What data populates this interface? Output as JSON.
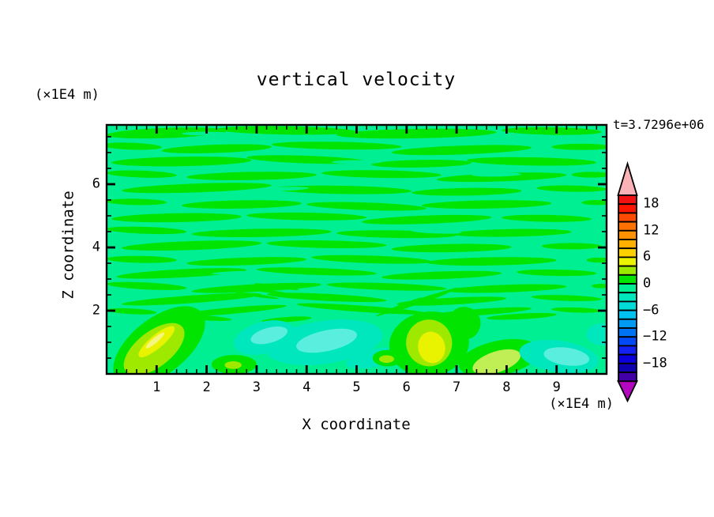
{
  "title": "vertical velocity",
  "time_label": "t=3.7296e+06",
  "x_axis": {
    "title": "X coordinate",
    "unit": "(×1E4 m)",
    "tick_labels": [
      "1",
      "2",
      "3",
      "4",
      "5",
      "6",
      "7",
      "8",
      "9"
    ]
  },
  "y_axis": {
    "title": "Z coordinate",
    "unit": "(×1E4 m)",
    "tick_labels": [
      "6",
      "4",
      "2"
    ]
  },
  "colorbar": {
    "labels": [
      "18",
      "12",
      "6",
      "0",
      "−6",
      "−12",
      "−18"
    ],
    "tick_values": [
      18,
      12,
      6,
      0,
      -6,
      -12,
      -18
    ],
    "level_min": -22,
    "level_max": 20,
    "interval": 2,
    "cell_colors": [
      "#f01212",
      "#fb1400",
      "#ff4a00",
      "#ff7100",
      "#ff9100",
      "#ffb000",
      "#ffd000",
      "#edf200",
      "#9ce900",
      "#00e400",
      "#00ef93",
      "#00e7bd",
      "#00dcd8",
      "#00c2ee",
      "#009af2",
      "#0072f4",
      "#014af6",
      "#1322f2",
      "#0b00dc",
      "#0e00b0",
      "#4100a8"
    ],
    "arrow_top_color": "#f9b3b7",
    "arrow_bottom_color": "#b408c0"
  },
  "chart_data": {
    "type": "filled_contour",
    "title": "vertical velocity",
    "time": "t=3.7296e+06",
    "xlabel": "X coordinate",
    "ylabel": "Z coordinate",
    "x_unit": "(×1E4 m)",
    "z_unit": "(×1E4 m)",
    "x_range": [
      0,
      10
    ],
    "z_range": [
      0,
      7.875
    ],
    "x_tick_values": [
      1,
      2,
      3,
      4,
      5,
      6,
      7,
      8,
      9
    ],
    "z_tick_values": [
      2,
      4,
      6
    ],
    "contour_interval": 2,
    "grid": false,
    "legend_position": "right-colorbar",
    "field_description": "Weak alternating up/down drafts (|w|<2) form horizontal streaks above z=2; stronger convective cells near the surface: updraft cores (w up to ~6) near x=1 and x=6.5, downdraft cores (w to ~-6) near x=3-5 and x=9.",
    "palette": {
      "SG": "#00ef93",
      "G": "#00e400",
      "T": "#00e7bd",
      "C": "#59eedd",
      "GY": "#9fe900",
      "Y": "#e9f300",
      "PY": "#f5f67e",
      "PG": "#c0ee55"
    },
    "level_of_color": {
      "G": "0..2",
      "SG": "-2..0",
      "GY": "2..4",
      "Y": "4..6",
      "T": "-2..-4",
      "C": "-4..-6",
      "PG": "2..4",
      "PY": "4..6"
    },
    "shapes": [
      [
        1.2,
        7.62,
        1.2,
        0.16,
        -2,
        "G"
      ],
      [
        3.6,
        7.7,
        1.4,
        0.13,
        1,
        "G"
      ],
      [
        6.2,
        7.6,
        1.6,
        0.15,
        -1,
        "G"
      ],
      [
        8.9,
        7.68,
        1.0,
        0.12,
        1,
        "G"
      ],
      [
        0.5,
        7.2,
        0.6,
        0.11,
        2,
        "G"
      ],
      [
        2.2,
        7.12,
        1.1,
        0.13,
        -2,
        "G"
      ],
      [
        4.6,
        7.22,
        1.3,
        0.12,
        1,
        "G"
      ],
      [
        7.1,
        7.08,
        1.4,
        0.14,
        -2,
        "G"
      ],
      [
        9.5,
        7.18,
        0.6,
        0.1,
        0,
        "G"
      ],
      [
        1.5,
        6.72,
        1.4,
        0.15,
        -1,
        "G"
      ],
      [
        4.0,
        6.78,
        1.2,
        0.12,
        2,
        "G"
      ],
      [
        6.3,
        6.65,
        1.0,
        0.12,
        -1,
        "G"
      ],
      [
        8.5,
        6.72,
        1.3,
        0.13,
        1,
        "G"
      ],
      [
        0.7,
        6.32,
        0.7,
        0.11,
        2,
        "G"
      ],
      [
        2.9,
        6.26,
        1.3,
        0.13,
        -1,
        "G"
      ],
      [
        5.5,
        6.32,
        1.2,
        0.12,
        1,
        "G"
      ],
      [
        7.9,
        6.22,
        1.3,
        0.13,
        -2,
        "G"
      ],
      [
        9.7,
        6.3,
        0.4,
        0.09,
        0,
        "G"
      ],
      [
        1.8,
        5.88,
        1.5,
        0.14,
        -2,
        "G"
      ],
      [
        4.7,
        5.82,
        1.4,
        0.13,
        1,
        "G"
      ],
      [
        7.2,
        5.76,
        1.1,
        0.12,
        -1,
        "G"
      ],
      [
        9.3,
        5.86,
        0.7,
        0.1,
        1,
        "G"
      ],
      [
        0.6,
        5.44,
        0.6,
        0.1,
        1,
        "G"
      ],
      [
        2.7,
        5.36,
        1.2,
        0.13,
        -1,
        "G"
      ],
      [
        5.2,
        5.3,
        1.2,
        0.12,
        2,
        "G"
      ],
      [
        7.6,
        5.36,
        1.3,
        0.13,
        -1,
        "G"
      ],
      [
        9.8,
        5.42,
        0.3,
        0.08,
        0,
        "G"
      ],
      [
        1.4,
        4.94,
        1.3,
        0.14,
        -1,
        "G"
      ],
      [
        4.0,
        4.98,
        1.2,
        0.12,
        1,
        "G"
      ],
      [
        6.4,
        4.88,
        1.3,
        0.13,
        -2,
        "G"
      ],
      [
        8.8,
        4.92,
        0.9,
        0.11,
        1,
        "G"
      ],
      [
        0.8,
        4.54,
        0.8,
        0.11,
        2,
        "G"
      ],
      [
        3.1,
        4.46,
        1.4,
        0.13,
        -1,
        "G"
      ],
      [
        5.8,
        4.42,
        1.2,
        0.12,
        1,
        "G"
      ],
      [
        8.1,
        4.46,
        1.2,
        0.12,
        -1,
        "G"
      ],
      [
        1.7,
        4.06,
        1.4,
        0.14,
        -2,
        "G"
      ],
      [
        4.4,
        4.1,
        1.2,
        0.12,
        1,
        "G"
      ],
      [
        6.9,
        3.98,
        1.2,
        0.13,
        -1,
        "G"
      ],
      [
        9.3,
        4.04,
        0.6,
        0.1,
        0,
        "G"
      ],
      [
        0.7,
        3.62,
        0.7,
        0.11,
        1,
        "G"
      ],
      [
        2.8,
        3.56,
        1.2,
        0.12,
        -2,
        "G"
      ],
      [
        5.3,
        3.62,
        1.2,
        0.12,
        2,
        "G"
      ],
      [
        7.7,
        3.56,
        1.3,
        0.13,
        -1,
        "G"
      ],
      [
        9.85,
        3.6,
        0.25,
        0.08,
        0,
        "G"
      ],
      [
        1.5,
        3.18,
        1.3,
        0.13,
        -3,
        "G"
      ],
      [
        4.2,
        3.24,
        1.2,
        0.11,
        2,
        "G"
      ],
      [
        6.7,
        3.12,
        1.2,
        0.12,
        -2,
        "G"
      ],
      [
        9.0,
        3.2,
        0.8,
        0.1,
        1,
        "G"
      ],
      [
        0.8,
        2.78,
        0.8,
        0.11,
        3,
        "G"
      ],
      [
        3.0,
        2.72,
        1.3,
        0.12,
        -3,
        "G"
      ],
      [
        5.6,
        2.76,
        1.2,
        0.11,
        2,
        "G"
      ],
      [
        8.0,
        2.7,
        1.2,
        0.12,
        -2,
        "G"
      ],
      [
        9.9,
        2.78,
        0.2,
        0.07,
        0,
        "G"
      ],
      [
        1.7,
        2.36,
        1.4,
        0.12,
        -4,
        "G"
      ],
      [
        4.4,
        2.42,
        1.2,
        0.11,
        3,
        "G"
      ],
      [
        6.9,
        2.3,
        1.1,
        0.11,
        -3,
        "G"
      ],
      [
        9.2,
        2.4,
        0.7,
        0.09,
        2,
        "G"
      ],
      [
        0.5,
        1.98,
        0.5,
        0.09,
        3,
        "G"
      ],
      [
        2.5,
        2.0,
        1.1,
        0.1,
        -5,
        "G"
      ],
      [
        5.1,
        2.06,
        1.3,
        0.1,
        4,
        "G"
      ],
      [
        7.5,
        1.96,
        1.0,
        0.1,
        -4,
        "G"
      ],
      [
        9.4,
        2.02,
        0.5,
        0.08,
        2,
        "G"
      ],
      [
        1.9,
        1.78,
        0.6,
        0.08,
        4,
        "G"
      ],
      [
        3.6,
        1.72,
        0.5,
        0.08,
        -4,
        "G"
      ],
      [
        8.3,
        1.82,
        0.7,
        0.09,
        -3,
        "G"
      ],
      [
        5.85,
        2.12,
        0.5,
        0.05,
        -22,
        "G"
      ],
      [
        6.1,
        2.22,
        0.55,
        0.05,
        -22,
        "G"
      ],
      [
        6.35,
        2.34,
        0.5,
        0.05,
        -22,
        "G"
      ],
      [
        6.6,
        2.46,
        0.45,
        0.05,
        -22,
        "G"
      ],
      [
        3.0,
        2.48,
        0.45,
        0.045,
        8,
        "G"
      ],
      [
        3.2,
        2.62,
        0.5,
        0.045,
        8,
        "G"
      ],
      [
        3.4,
        2.76,
        0.45,
        0.045,
        8,
        "G"
      ],
      [
        2.0,
        7.6,
        0.5,
        0.06,
        0,
        "SG"
      ],
      [
        5.0,
        6.7,
        0.5,
        0.06,
        0,
        "SG"
      ],
      [
        3.5,
        5.85,
        0.55,
        0.06,
        -2,
        "SG"
      ],
      [
        6.6,
        4.5,
        0.5,
        0.06,
        2,
        "SG"
      ],
      [
        2.6,
        3.2,
        0.5,
        0.05,
        -2,
        "SG"
      ],
      [
        7.8,
        6.3,
        0.5,
        0.06,
        -1,
        "SG"
      ],
      [
        1.05,
        0.88,
        1.08,
        0.88,
        -38,
        "G"
      ],
      [
        0.95,
        0.78,
        0.72,
        0.56,
        -38,
        "GY"
      ],
      [
        1.0,
        1.02,
        0.46,
        0.21,
        -40,
        "Y"
      ],
      [
        0.97,
        1.06,
        0.24,
        0.085,
        -40,
        "PY"
      ],
      [
        2.55,
        0.3,
        0.45,
        0.3,
        0,
        "G"
      ],
      [
        2.53,
        0.28,
        0.17,
        0.12,
        0,
        "GY"
      ],
      [
        3.15,
        1.15,
        0.62,
        0.5,
        -15,
        "T"
      ],
      [
        4.35,
        1.0,
        1.18,
        0.68,
        -8,
        "T"
      ],
      [
        5.35,
        0.5,
        0.58,
        0.28,
        -12,
        "T"
      ],
      [
        3.25,
        1.22,
        0.38,
        0.24,
        -15,
        "C"
      ],
      [
        4.4,
        1.05,
        0.62,
        0.33,
        -12,
        "C"
      ],
      [
        6.45,
        0.95,
        0.8,
        1.02,
        -8,
        "G"
      ],
      [
        7.15,
        1.6,
        0.33,
        0.52,
        -28,
        "G"
      ],
      [
        6.45,
        0.98,
        0.46,
        0.74,
        -12,
        "GY"
      ],
      [
        6.5,
        0.84,
        0.27,
        0.5,
        -12,
        "Y"
      ],
      [
        5.62,
        0.5,
        0.3,
        0.26,
        0,
        "G"
      ],
      [
        5.6,
        0.47,
        0.15,
        0.12,
        0,
        "GY"
      ],
      [
        7.85,
        0.5,
        0.82,
        0.55,
        -12,
        "G"
      ],
      [
        7.8,
        0.38,
        0.5,
        0.33,
        -18,
        "PG"
      ],
      [
        9.05,
        0.55,
        0.8,
        0.5,
        8,
        "T"
      ],
      [
        9.2,
        0.55,
        0.46,
        0.28,
        8,
        "C"
      ],
      [
        9.9,
        1.25,
        0.3,
        0.35,
        0,
        "T"
      ]
    ]
  }
}
